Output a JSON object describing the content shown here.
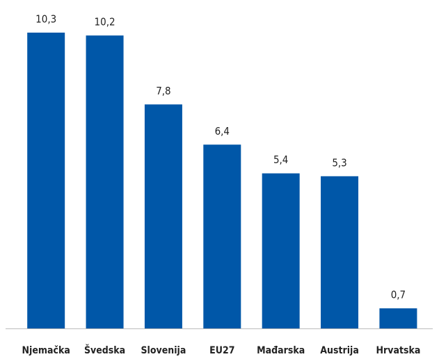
{
  "chart_data": {
    "type": "bar",
    "categories": [
      "Njemačka",
      "Švedska",
      "Slovenija",
      "EU27",
      "Mađarska",
      "Austrija",
      "Hrvatska"
    ],
    "values": [
      10.3,
      10.2,
      7.8,
      6.4,
      5.4,
      5.3,
      0.7
    ],
    "value_labels": [
      "10,3",
      "10,2",
      "7,8",
      "6,4",
      "5,4",
      "5,3",
      "0,7"
    ],
    "color": "#0057a8",
    "ylim": [
      0,
      10.5
    ]
  }
}
